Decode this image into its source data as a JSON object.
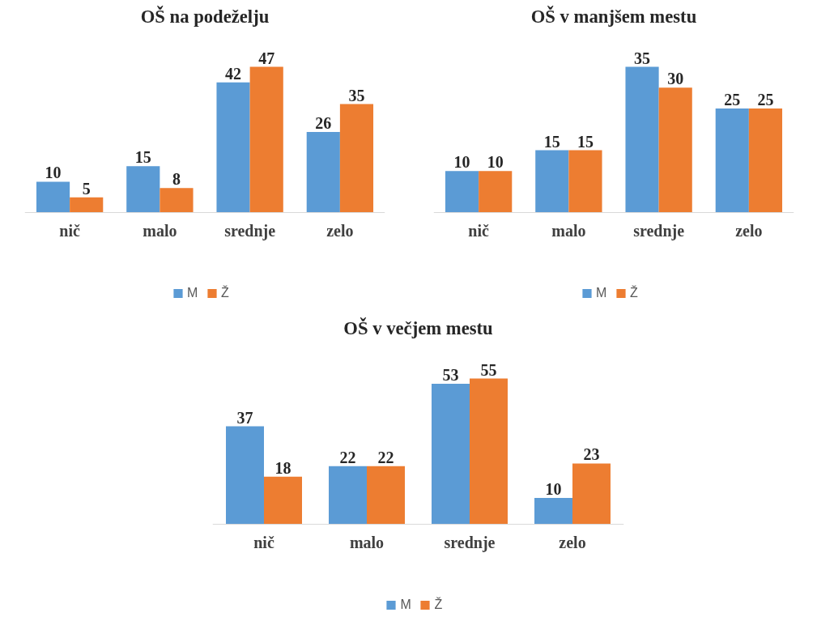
{
  "chart_data": [
    {
      "type": "bar",
      "title": "OŠ na podeželju",
      "categories": [
        "nič",
        "malo",
        "srednje",
        "zelo"
      ],
      "series": [
        {
          "name": "M",
          "color": "#5b9bd5",
          "values": [
            10,
            15,
            42,
            26
          ]
        },
        {
          "name": "Ž",
          "color": "#ed7d31",
          "values": [
            5,
            8,
            47,
            35
          ]
        }
      ],
      "data_labels": true,
      "grid": false,
      "legend": "bottom",
      "tick_labels": "x"
    },
    {
      "type": "bar",
      "title": "OŠ v manjšem mestu",
      "categories": [
        "nič",
        "malo",
        "srednje",
        "zelo"
      ],
      "series": [
        {
          "name": "M",
          "color": "#5b9bd5",
          "values": [
            10,
            15,
            35,
            25
          ]
        },
        {
          "name": "Ž",
          "color": "#ed7d31",
          "values": [
            10,
            15,
            30,
            25
          ]
        }
      ],
      "data_labels": true,
      "grid": false,
      "legend": "bottom",
      "tick_labels": "x"
    },
    {
      "type": "bar",
      "title": "OŠ v večjem mestu",
      "categories": [
        "nič",
        "malo",
        "srednje",
        "zelo"
      ],
      "series": [
        {
          "name": "M",
          "color": "#5b9bd5",
          "values": [
            37,
            22,
            53,
            10
          ]
        },
        {
          "name": "Ž",
          "color": "#ed7d31",
          "values": [
            18,
            22,
            55,
            23
          ]
        }
      ],
      "data_labels": true,
      "grid": false,
      "legend": "bottom",
      "tick_labels": "x"
    }
  ]
}
